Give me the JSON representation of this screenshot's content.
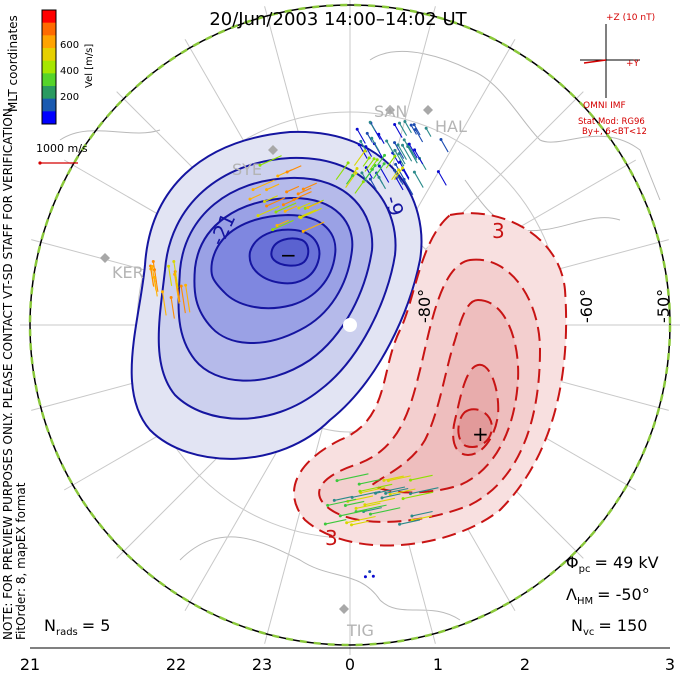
{
  "title": "20/Jun/2003 14:00–14:02 UT",
  "side_note": "NOTE: FOR PREVIEW PURPOSES ONLY. PLEASE CONTACT VT-SD STAFF FOR VERIFICATION.",
  "fit_note": "FitOrder: 8, mapEX format",
  "coord_note": "MLT coordinates",
  "colorbar": {
    "label": "Vel [m/s]",
    "ticks": [
      "600",
      "400",
      "200"
    ],
    "colors": [
      "#ff0000",
      "#ff6a00",
      "#ffa300",
      "#e6d000",
      "#a6e600",
      "#55d42a",
      "#2a9a60",
      "#1a5ab0",
      "#0000ff"
    ]
  },
  "ref_vector": "1000 m/s",
  "imf": {
    "z_label": "+Z (10 nT)",
    "y_label": "+Y",
    "source": "OMNI IMF",
    "model": "Stat Mod: RG96",
    "condition": "By+, 6<BT<12",
    "color": "#d40000"
  },
  "stats": {
    "phi_pc": "Φ",
    "phi_sub": "pc",
    "phi_val": "= 49 kV",
    "lambda": "Λ",
    "lambda_sub": "HM",
    "lambda_val": "= -50°",
    "nvc": "N",
    "nvc_sub": "vc",
    "nvc_val": "= 150",
    "nrads": "N",
    "nrads_sub": "rads",
    "nrads_val": "= 5"
  },
  "mlt_ticks": [
    "21",
    "22",
    "23",
    "0",
    "1",
    "2",
    "3"
  ],
  "lat_labels": [
    "-80°",
    "-60°",
    "-50°"
  ],
  "contour_labels": {
    "neg_a": "-21",
    "neg_b": "-9",
    "neg_min": "−",
    "pos_a": "3",
    "pos_b": "3",
    "pos_max": "+"
  },
  "stations": [
    "KER",
    "SAN",
    "HAL",
    "SYE",
    "TIG"
  ],
  "colors": {
    "negative": "#1010b0",
    "positive": "#d01010",
    "boundary": "#8ac83a",
    "grid": "#c8c8c8"
  }
}
